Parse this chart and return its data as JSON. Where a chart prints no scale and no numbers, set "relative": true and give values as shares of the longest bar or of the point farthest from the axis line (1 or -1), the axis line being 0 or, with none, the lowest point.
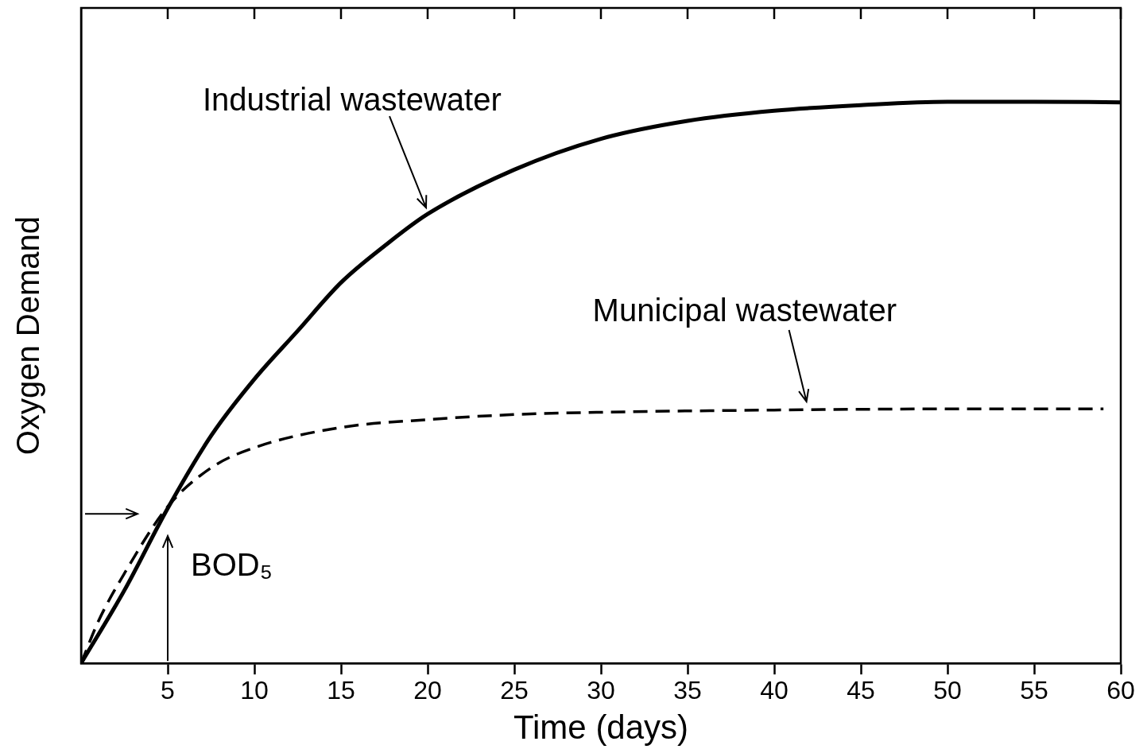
{
  "chart_data": {
    "type": "line",
    "relative": true,
    "xlabel": "Time (days)",
    "ylabel": "Oxygen Demand",
    "xlim": [
      0,
      60
    ],
    "xticks": [
      5,
      10,
      15,
      20,
      25,
      30,
      35,
      40,
      45,
      50,
      55,
      60
    ],
    "grid": false,
    "legend": false,
    "marker": "none",
    "series": [
      {
        "color": "#000000",
        "line_style": "solid",
        "x": [
          0,
          2.5,
          5,
          7.5,
          10,
          12.5,
          15,
          17.5,
          20,
          25,
          30,
          35,
          40,
          45,
          50,
          55,
          60
        ],
        "values": [
          0,
          0.13,
          0.276,
          0.405,
          0.506,
          0.592,
          0.678,
          0.743,
          0.8,
          0.879,
          0.934,
          0.966,
          0.984,
          0.994,
          1,
          1,
          0.999
        ]
      },
      {
        "color": "#000000",
        "line_style": "dashed",
        "x": [
          0,
          1,
          2.5,
          5,
          7.5,
          10,
          15,
          20,
          25,
          30,
          40,
          50,
          59
        ],
        "values": [
          0,
          0.075,
          0.16,
          0.279,
          0.348,
          0.384,
          0.42,
          0.434,
          0.443,
          0.447,
          0.451,
          0.453,
          0.453
        ]
      }
    ],
    "annotations": [
      {
        "text": "Industrial wastewater",
        "x": 20,
        "y": 0.8
      },
      {
        "text": "Municipal wastewater",
        "x": 42,
        "y": 0.452
      },
      {
        "text": "BOD₅",
        "x": 5,
        "y": 0.279
      }
    ]
  }
}
